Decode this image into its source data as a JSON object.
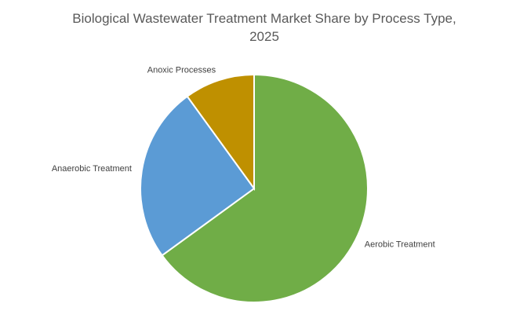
{
  "chart_data": {
    "type": "pie",
    "title": "Biological Wastewater Treatment Market Share by Process Type, 2025",
    "categories": [
      "Aerobic Treatment",
      "Anaerobic Treatment",
      "Anoxic Processes"
    ],
    "values": [
      65,
      25,
      10
    ],
    "colors": [
      "#70ad47",
      "#5b9bd5",
      "#bf9000"
    ]
  }
}
